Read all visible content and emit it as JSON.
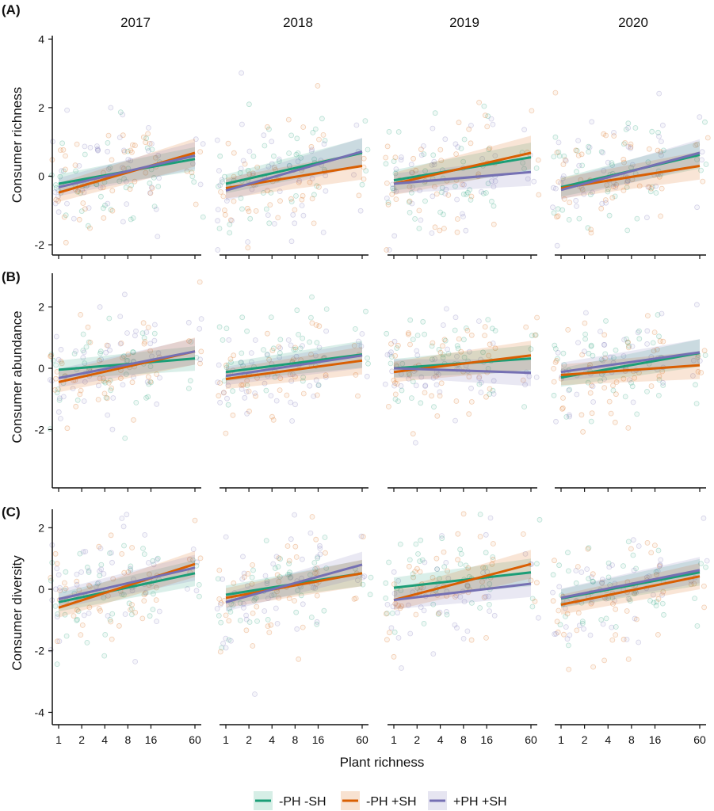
{
  "figure": {
    "panel_labels": [
      "(A)",
      "(B)",
      "(C)"
    ],
    "years": [
      "2017",
      "2018",
      "2019",
      "2020"
    ],
    "xlabel": "Plant richness",
    "x_ticks": [
      1,
      2,
      4,
      8,
      16,
      60
    ],
    "x_scale": "log",
    "legend": [
      {
        "label": "-PH -SH",
        "color": "#1b9e77"
      },
      {
        "label": "-PH +SH",
        "color": "#d95f02"
      },
      {
        "label": "+PH +SH",
        "color": "#7570b3"
      }
    ]
  },
  "chart_data": [
    {
      "type": "scatter",
      "panel": "(A)",
      "ylabel": "Consumer richness",
      "ylim": [
        -2.3,
        4.1
      ],
      "y_ticks": [
        -2,
        0,
        2,
        4
      ],
      "facets": [
        {
          "year": "2017",
          "series": [
            {
              "name": "-PH -SH",
              "x": [
                1,
                60
              ],
              "y": [
                -0.22,
                0.5
              ],
              "ci": [
                [
                  -0.45,
                  0.05
                ],
                [
                  0.15,
                  0.85
                ]
              ]
            },
            {
              "name": "-PH +SH",
              "x": [
                1,
                60
              ],
              "y": [
                -0.48,
                0.68
              ],
              "ci": [
                [
                  -0.75,
                  -0.2
                ],
                [
                  0.28,
                  1.1
                ]
              ]
            },
            {
              "name": "+PH +SH",
              "x": [
                1,
                60
              ],
              "y": [
                -0.32,
                0.6
              ],
              "ci": [
                [
                  -0.58,
                  -0.05
                ],
                [
                  0.2,
                  1.0
                ]
              ]
            }
          ]
        },
        {
          "year": "2018",
          "series": [
            {
              "name": "-PH -SH",
              "x": [
                1,
                60
              ],
              "y": [
                -0.22,
                0.68
              ],
              "ci": [
                [
                  -0.5,
                  0.05
                ],
                [
                  0.3,
                  1.1
                ]
              ]
            },
            {
              "name": "-PH +SH",
              "x": [
                1,
                60
              ],
              "y": [
                -0.35,
                0.3
              ],
              "ci": [
                [
                  -0.65,
                  -0.05
                ],
                [
                  -0.1,
                  0.7
                ]
              ]
            },
            {
              "name": "+PH +SH",
              "x": [
                1,
                60
              ],
              "y": [
                -0.42,
                0.72
              ],
              "ci": [
                [
                  -0.72,
                  -0.1
                ],
                [
                  0.32,
                  1.12
                ]
              ]
            }
          ]
        },
        {
          "year": "2019",
          "series": [
            {
              "name": "-PH -SH",
              "x": [
                1,
                60
              ],
              "y": [
                -0.12,
                0.55
              ],
              "ci": [
                [
                  -0.42,
                  0.18
                ],
                [
                  0.12,
                  0.98
                ]
              ]
            },
            {
              "name": "-PH +SH",
              "x": [
                1,
                60
              ],
              "y": [
                -0.22,
                0.68
              ],
              "ci": [
                [
                  -0.55,
                  0.1
                ],
                [
                  0.2,
                  1.18
                ]
              ]
            },
            {
              "name": "+PH +SH",
              "x": [
                1,
                60
              ],
              "y": [
                -0.22,
                0.12
              ],
              "ci": [
                [
                  -0.5,
                  0.08
                ],
                [
                  -0.28,
                  0.52
                ]
              ]
            }
          ]
        },
        {
          "year": "2020",
          "series": [
            {
              "name": "-PH -SH",
              "x": [
                1,
                60
              ],
              "y": [
                -0.32,
                0.62
              ],
              "ci": [
                [
                  -0.6,
                  -0.05
                ],
                [
                  0.22,
                  1.02
                ]
              ]
            },
            {
              "name": "-PH +SH",
              "x": [
                1,
                60
              ],
              "y": [
                -0.35,
                0.3
              ],
              "ci": [
                [
                  -0.65,
                  -0.05
                ],
                [
                  -0.1,
                  0.72
                ]
              ]
            },
            {
              "name": "+PH +SH",
              "x": [
                1,
                60
              ],
              "y": [
                -0.4,
                0.68
              ],
              "ci": [
                [
                  -0.68,
                  -0.12
                ],
                [
                  0.28,
                  1.08
                ]
              ]
            }
          ]
        }
      ]
    },
    {
      "type": "scatter",
      "panel": "(B)",
      "ylabel": "Consumer abundance",
      "ylim": [
        -3.9,
        3.1
      ],
      "y_ticks": [
        -2,
        0,
        2
      ],
      "facets": [
        {
          "year": "2017",
          "series": [
            {
              "name": "-PH -SH",
              "x": [
                1,
                60
              ],
              "y": [
                -0.05,
                0.32
              ],
              "ci": [
                [
                  -0.35,
                  0.25
                ],
                [
                  -0.08,
                  0.72
                ]
              ]
            },
            {
              "name": "-PH +SH",
              "x": [
                1,
                60
              ],
              "y": [
                -0.45,
                0.55
              ],
              "ci": [
                [
                  -0.78,
                  -0.12
                ],
                [
                  0.12,
                  1.0
                ]
              ]
            },
            {
              "name": "+PH +SH",
              "x": [
                1,
                60
              ],
              "y": [
                -0.32,
                0.55
              ],
              "ci": [
                [
                  -0.62,
                  -0.02
                ],
                [
                  0.12,
                  0.98
                ]
              ]
            }
          ]
        },
        {
          "year": "2018",
          "series": [
            {
              "name": "-PH -SH",
              "x": [
                1,
                60
              ],
              "y": [
                -0.12,
                0.45
              ],
              "ci": [
                [
                  -0.42,
                  0.18
                ],
                [
                  0.02,
                  0.9
                ]
              ]
            },
            {
              "name": "-PH +SH",
              "x": [
                1,
                60
              ],
              "y": [
                -0.35,
                0.25
              ],
              "ci": [
                [
                  -0.68,
                  -0.02
                ],
                [
                  -0.2,
                  0.7
                ]
              ]
            },
            {
              "name": "+PH +SH",
              "x": [
                1,
                60
              ],
              "y": [
                -0.25,
                0.42
              ],
              "ci": [
                [
                  -0.55,
                  0.05
                ],
                [
                  0.0,
                  0.85
                ]
              ]
            }
          ]
        },
        {
          "year": "2019",
          "series": [
            {
              "name": "-PH -SH",
              "x": [
                1,
                60
              ],
              "y": [
                0.0,
                0.32
              ],
              "ci": [
                [
                  -0.3,
                  0.3
                ],
                [
                  -0.12,
                  0.76
                ]
              ]
            },
            {
              "name": "-PH +SH",
              "x": [
                1,
                60
              ],
              "y": [
                -0.12,
                0.42
              ],
              "ci": [
                [
                  -0.45,
                  0.22
                ],
                [
                  -0.05,
                  0.9
                ]
              ]
            },
            {
              "name": "+PH +SH",
              "x": [
                1,
                60
              ],
              "y": [
                0.0,
                -0.15
              ],
              "ci": [
                [
                  -0.3,
                  0.3
                ],
                [
                  -0.58,
                  0.28
                ]
              ]
            }
          ]
        },
        {
          "year": "2020",
          "series": [
            {
              "name": "-PH -SH",
              "x": [
                1,
                60
              ],
              "y": [
                -0.3,
                0.5
              ],
              "ci": [
                [
                  -0.6,
                  0.0
                ],
                [
                  0.05,
                  0.95
                ]
              ]
            },
            {
              "name": "-PH +SH",
              "x": [
                1,
                60
              ],
              "y": [
                -0.22,
                0.1
              ],
              "ci": [
                [
                  -0.55,
                  0.12
                ],
                [
                  -0.35,
                  0.55
                ]
              ]
            },
            {
              "name": "+PH +SH",
              "x": [
                1,
                60
              ],
              "y": [
                -0.12,
                0.52
              ],
              "ci": [
                [
                  -0.42,
                  0.18
                ],
                [
                  0.1,
                  0.95
                ]
              ]
            }
          ]
        }
      ]
    },
    {
      "type": "scatter",
      "panel": "(C)",
      "ylabel": "Consumer diversity",
      "ylim": [
        -4.4,
        2.6
      ],
      "y_ticks": [
        -4,
        -2,
        0,
        2
      ],
      "facets": [
        {
          "year": "2017",
          "series": [
            {
              "name": "-PH -SH",
              "x": [
                1,
                60
              ],
              "y": [
                -0.42,
                0.52
              ],
              "ci": [
                [
                  -0.72,
                  -0.12
                ],
                [
                  0.1,
                  0.95
                ]
              ]
            },
            {
              "name": "-PH +SH",
              "x": [
                1,
                60
              ],
              "y": [
                -0.6,
                0.82
              ],
              "ci": [
                [
                  -0.92,
                  -0.28
                ],
                [
                  0.4,
                  1.25
                ]
              ]
            },
            {
              "name": "+PH +SH",
              "x": [
                1,
                60
              ],
              "y": [
                -0.32,
                0.7
              ],
              "ci": [
                [
                  -0.62,
                  -0.02
                ],
                [
                  0.28,
                  1.12
                ]
              ]
            }
          ]
        },
        {
          "year": "2018",
          "series": [
            {
              "name": "-PH -SH",
              "x": [
                1,
                60
              ],
              "y": [
                -0.18,
                0.52
              ],
              "ci": [
                [
                  -0.48,
                  0.12
                ],
                [
                  0.1,
                  0.95
                ]
              ]
            },
            {
              "name": "-PH +SH",
              "x": [
                1,
                60
              ],
              "y": [
                -0.28,
                0.52
              ],
              "ci": [
                [
                  -0.6,
                  0.04
                ],
                [
                  0.1,
                  0.96
                ]
              ]
            },
            {
              "name": "+PH +SH",
              "x": [
                1,
                60
              ],
              "y": [
                -0.42,
                0.8
              ],
              "ci": [
                [
                  -0.72,
                  -0.12
                ],
                [
                  0.38,
                  1.22
                ]
              ]
            }
          ]
        },
        {
          "year": "2019",
          "series": [
            {
              "name": "-PH -SH",
              "x": [
                1,
                60
              ],
              "y": [
                0.05,
                0.55
              ],
              "ci": [
                [
                  -0.28,
                  0.38
                ],
                [
                  0.1,
                  1.0
                ]
              ]
            },
            {
              "name": "-PH +SH",
              "x": [
                1,
                60
              ],
              "y": [
                -0.35,
                0.82
              ],
              "ci": [
                [
                  -0.68,
                  -0.02
                ],
                [
                  0.35,
                  1.28
                ]
              ]
            },
            {
              "name": "+PH +SH",
              "x": [
                1,
                60
              ],
              "y": [
                -0.35,
                0.18
              ],
              "ci": [
                [
                  -0.65,
                  -0.05
                ],
                [
                  -0.25,
                  0.6
                ]
              ]
            }
          ]
        },
        {
          "year": "2020",
          "series": [
            {
              "name": "-PH -SH",
              "x": [
                1,
                60
              ],
              "y": [
                -0.3,
                0.55
              ],
              "ci": [
                [
                  -0.6,
                  0.0
                ],
                [
                  0.12,
                  0.98
                ]
              ]
            },
            {
              "name": "-PH +SH",
              "x": [
                1,
                60
              ],
              "y": [
                -0.5,
                0.42
              ],
              "ci": [
                [
                  -0.82,
                  -0.18
                ],
                [
                  0.0,
                  0.85
                ]
              ]
            },
            {
              "name": "+PH +SH",
              "x": [
                1,
                60
              ],
              "y": [
                -0.28,
                0.62
              ],
              "ci": [
                [
                  -0.58,
                  0.02
                ],
                [
                  0.2,
                  1.05
                ]
              ]
            }
          ]
        }
      ]
    }
  ]
}
